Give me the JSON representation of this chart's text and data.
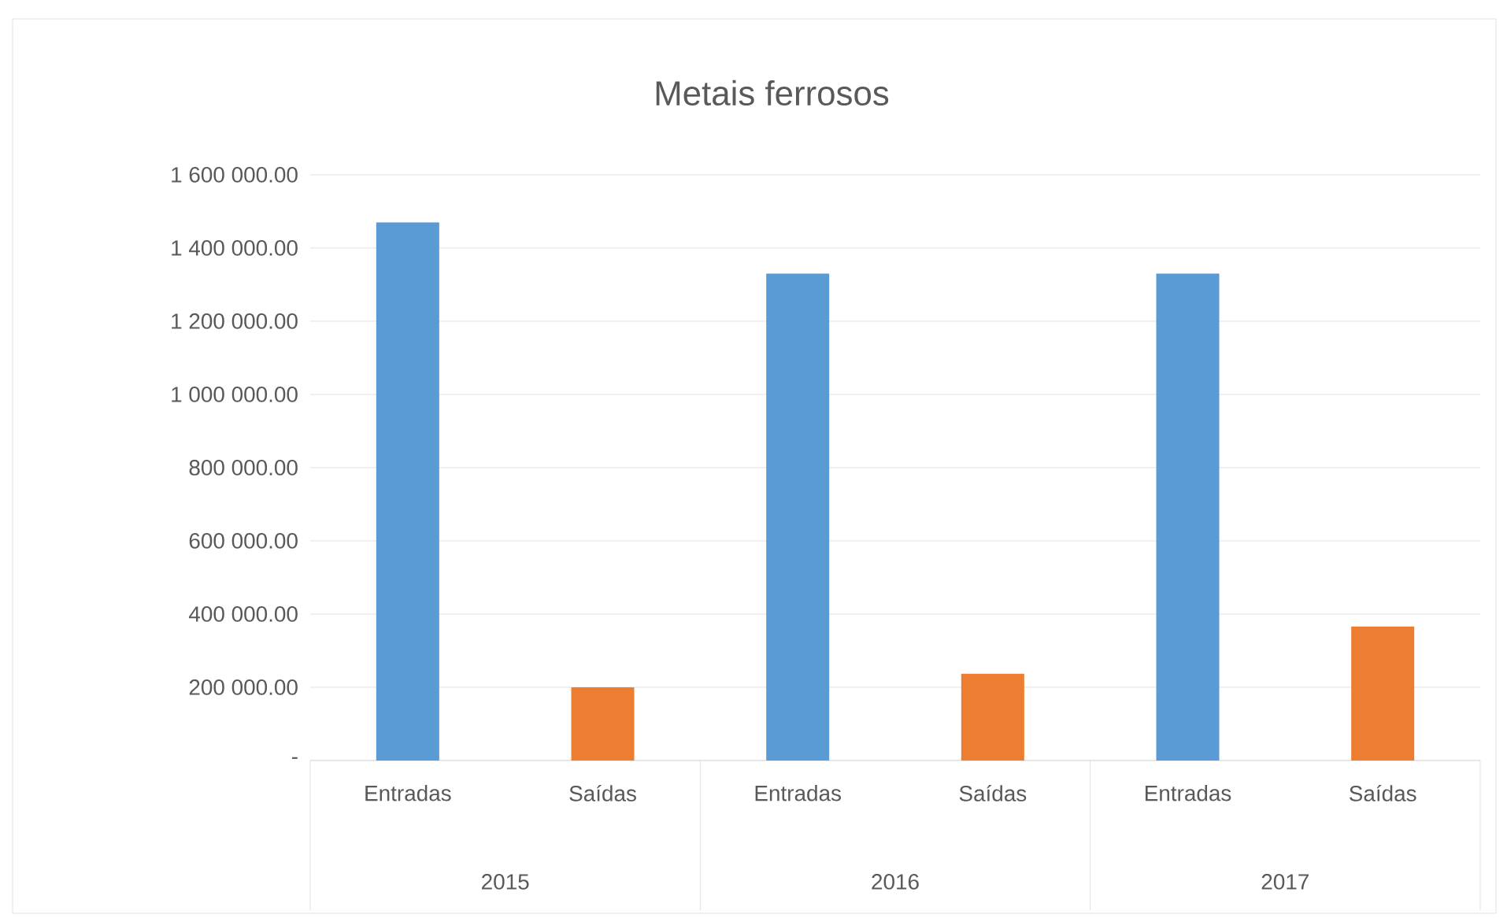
{
  "chart_data": {
    "type": "bar",
    "title": "Metais ferrosos",
    "categories": [
      "Entradas",
      "Saídas",
      "Entradas",
      "Saídas",
      "Entradas",
      "Saídas"
    ],
    "values": [
      1470000,
      200000,
      1330000,
      237000,
      1330000,
      366000
    ],
    "colors": [
      "#5b9bd5",
      "#ed7d31",
      "#5b9bd5",
      "#ed7d31",
      "#5b9bd5",
      "#ed7d31"
    ],
    "ylim": [
      0,
      1600000
    ],
    "yticks": [
      {
        "value": 0,
        "label": "-"
      },
      {
        "value": 200000,
        "label": "200 000.00"
      },
      {
        "value": 400000,
        "label": "400 000.00"
      },
      {
        "value": 600000,
        "label": "600 000.00"
      },
      {
        "value": 800000,
        "label": "800 000.00"
      },
      {
        "value": 1000000,
        "label": "1 000 000.00"
      },
      {
        "value": 1200000,
        "label": "1 200 000.00"
      },
      {
        "value": 1400000,
        "label": "1 400 000.00"
      },
      {
        "value": 1600000,
        "label": "1 600 000.00"
      }
    ],
    "annotations": [
      "2015",
      "2016",
      "2017"
    ],
    "grid": "y"
  }
}
